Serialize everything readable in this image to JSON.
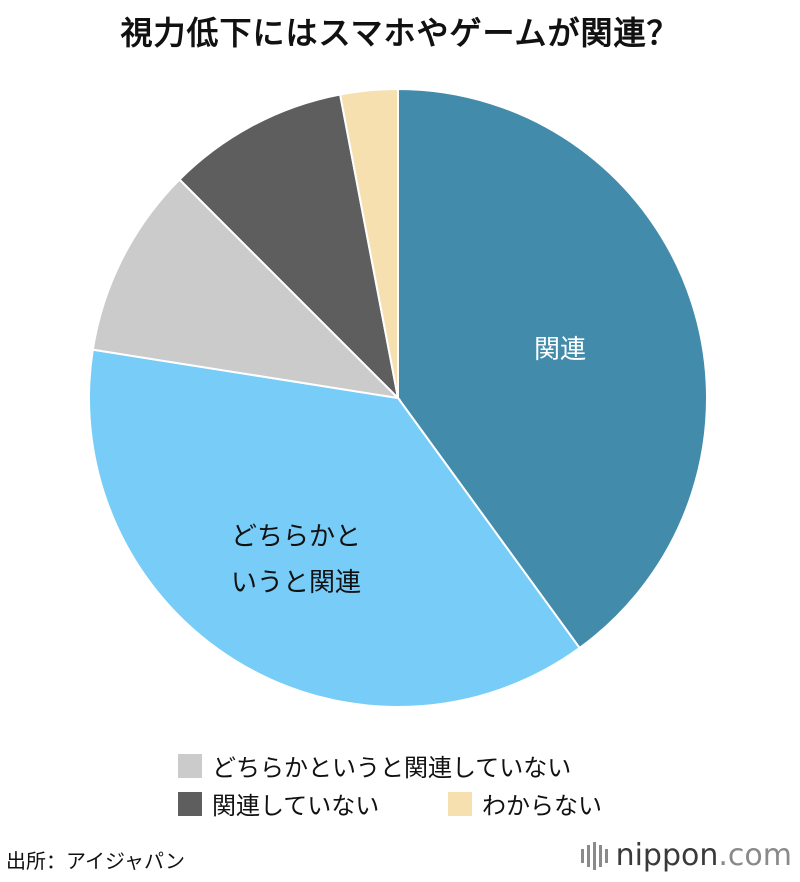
{
  "title": "視力低下にはスマホやゲームが関連？",
  "chart_data": {
    "type": "pie",
    "start": "12 o'clock",
    "direction": "clockwise",
    "slices": [
      {
        "label": "関連",
        "value": 40.0,
        "color": "#428bab",
        "label_color": "#ffffff",
        "label_lines": [
          "関連"
        ]
      },
      {
        "label": "どちらかというと関連",
        "value": 37.5,
        "color": "#77cdf7",
        "label_color": "#111111",
        "label_lines": [
          "どちらかと",
          "いうと関連"
        ]
      },
      {
        "label": "どちらかというと関連していない",
        "value": 10.0,
        "color": "#cbcbcb",
        "label_color": "#111111",
        "label_lines": []
      },
      {
        "label": "関連していない",
        "value": 9.5,
        "color": "#5e5e5e",
        "label_color": "#ffffff",
        "label_lines": []
      },
      {
        "label": "わからない",
        "value": 3.0,
        "color": "#f6e0b0",
        "label_color": "#111111",
        "label_lines": []
      }
    ],
    "legend": [
      {
        "label": "どちらかというと関連していない",
        "color": "#cbcbcb"
      },
      {
        "label": "関連していない",
        "color": "#5e5e5e"
      },
      {
        "label": "わからない",
        "color": "#f6e0b0"
      }
    ]
  },
  "source": "出所：アイジャパン",
  "brand": {
    "name": "nippon",
    "suffix": ".com"
  }
}
